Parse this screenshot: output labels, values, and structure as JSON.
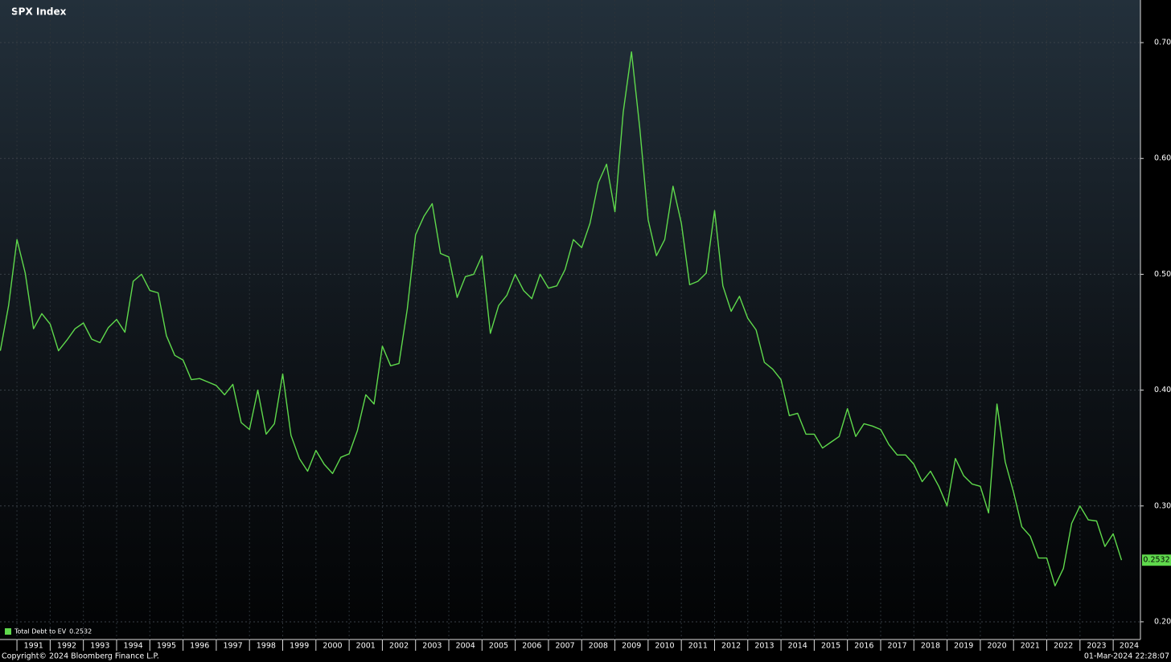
{
  "chart_data": {
    "type": "line",
    "title": "SPX Index",
    "source": "Copyright© 2024 Bloomberg Finance L.P.",
    "timestamp": "01-Mar-2024 22:28:07",
    "x": [
      1990.5,
      1990.75,
      1991,
      1991.25,
      1991.5,
      1991.75,
      1992,
      1992.25,
      1992.5,
      1992.75,
      1993,
      1993.25,
      1993.5,
      1993.75,
      1994,
      1994.25,
      1994.5,
      1994.75,
      1995,
      1995.25,
      1995.5,
      1995.75,
      1996,
      1996.25,
      1996.5,
      1996.75,
      1997,
      1997.25,
      1997.5,
      1997.75,
      1998,
      1998.25,
      1998.5,
      1998.75,
      1999,
      1999.25,
      1999.5,
      1999.75,
      2000,
      2000.25,
      2000.5,
      2000.75,
      2001,
      2001.25,
      2001.5,
      2001.75,
      2002,
      2002.25,
      2002.5,
      2002.75,
      2003,
      2003.25,
      2003.5,
      2003.75,
      2004,
      2004.25,
      2004.5,
      2004.75,
      2005,
      2005.25,
      2005.5,
      2005.75,
      2006,
      2006.25,
      2006.5,
      2006.75,
      2007,
      2007.25,
      2007.5,
      2007.75,
      2008,
      2008.25,
      2008.5,
      2008.75,
      2009,
      2009.25,
      2009.5,
      2009.75,
      2010,
      2010.25,
      2010.5,
      2010.75,
      2011,
      2011.25,
      2011.5,
      2011.75,
      2012,
      2012.25,
      2012.5,
      2012.75,
      2013,
      2013.25,
      2013.5,
      2013.75,
      2014,
      2014.25,
      2014.5,
      2014.75,
      2015,
      2015.25,
      2015.5,
      2015.75,
      2016,
      2016.25,
      2016.5,
      2016.75,
      2017,
      2017.25,
      2017.5,
      2017.75,
      2018,
      2018.25,
      2018.5,
      2018.75,
      2019,
      2019.25,
      2019.5,
      2019.75,
      2020,
      2020.25,
      2020.5,
      2020.75,
      2021,
      2021.25,
      2021.5,
      2021.75,
      2022,
      2022.25,
      2022.5,
      2022.75,
      2023,
      2023.25,
      2023.5,
      2023.75,
      2024,
      2024.25
    ],
    "series": [
      {
        "name": "Total Debt to EV",
        "color": "#5fd94c",
        "values": [
          0.434,
          0.473,
          0.53,
          0.501,
          0.453,
          0.466,
          0.457,
          0.434,
          0.443,
          0.453,
          0.458,
          0.444,
          0.441,
          0.454,
          0.461,
          0.45,
          0.494,
          0.5,
          0.486,
          0.484,
          0.447,
          0.43,
          0.426,
          0.409,
          0.41,
          0.407,
          0.404,
          0.396,
          0.405,
          0.372,
          0.366,
          0.4,
          0.362,
          0.371,
          0.414,
          0.361,
          0.341,
          0.33,
          0.348,
          0.336,
          0.328,
          0.342,
          0.345,
          0.365,
          0.396,
          0.388,
          0.438,
          0.421,
          0.423,
          0.47,
          0.534,
          0.55,
          0.561,
          0.518,
          0.515,
          0.48,
          0.498,
          0.5,
          0.516,
          0.449,
          0.473,
          0.482,
          0.5,
          0.486,
          0.479,
          0.5,
          0.488,
          0.49,
          0.504,
          0.53,
          0.523,
          0.544,
          0.579,
          0.595,
          0.554,
          0.64,
          0.692,
          0.626,
          0.547,
          0.516,
          0.53,
          0.576,
          0.544,
          0.491,
          0.494,
          0.501,
          0.555,
          0.49,
          0.468,
          0.481,
          0.462,
          0.452,
          0.424,
          0.418,
          0.409,
          0.378,
          0.38,
          0.362,
          0.362,
          0.35,
          0.355,
          0.36,
          0.384,
          0.36,
          0.371,
          0.369,
          0.366,
          0.353,
          0.344,
          0.344,
          0.336,
          0.321,
          0.33,
          0.317,
          0.3,
          0.341,
          0.326,
          0.319,
          0.317,
          0.294,
          0.388,
          0.338,
          0.312,
          0.282,
          0.274,
          0.255,
          0.255,
          0.231,
          0.246,
          0.285,
          0.3,
          0.288,
          0.287,
          0.265,
          0.276,
          0.2532
        ]
      }
    ],
    "xlim": [
      1990.49,
      2024.82
    ],
    "xticks": [
      1991,
      1992,
      1993,
      1994,
      1995,
      1996,
      1997,
      1998,
      1999,
      2000,
      2001,
      2002,
      2003,
      2004,
      2005,
      2006,
      2007,
      2008,
      2009,
      2010,
      2011,
      2012,
      2013,
      2014,
      2015,
      2016,
      2017,
      2018,
      2019,
      2020,
      2021,
      2022,
      2023,
      2024
    ],
    "ylim": [
      0.1847,
      0.7368
    ],
    "yticks": [
      {
        "value": 0.2,
        "label": "0.20"
      },
      {
        "value": 0.3,
        "label": "0.30"
      },
      {
        "value": 0.4,
        "label": "0.40"
      },
      {
        "value": 0.5,
        "label": "0.50"
      },
      {
        "value": 0.6,
        "label": "0.60"
      },
      {
        "value": 0.7,
        "label": "0.70"
      }
    ],
    "grid": true,
    "legend": "lower left"
  }
}
